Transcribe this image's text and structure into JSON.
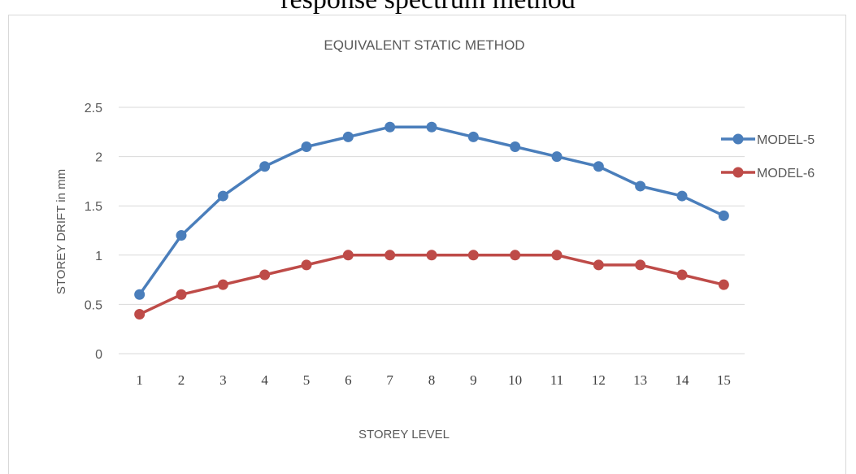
{
  "caption": "response spectrum method",
  "chart_data": {
    "type": "line",
    "title": "EQUIVALENT STATIC METHOD",
    "xlabel": "STOREY LEVEL",
    "ylabel": "STOREY DRIFT in mm",
    "x": [
      1,
      2,
      3,
      4,
      5,
      6,
      7,
      8,
      9,
      10,
      11,
      12,
      13,
      14,
      15
    ],
    "yticks": [
      "0",
      "0.5",
      "1",
      "1.5",
      "2",
      "2.5"
    ],
    "ylim": [
      0,
      2.5
    ],
    "grid": "horizontal",
    "legend": "right",
    "series": [
      {
        "name": "MODEL-5",
        "color": "#4a7ebb",
        "values": [
          0.6,
          1.2,
          1.6,
          1.9,
          2.1,
          2.2,
          2.3,
          2.3,
          2.2,
          2.1,
          2.0,
          1.9,
          1.7,
          1.6,
          1.4
        ]
      },
      {
        "name": "MODEL-6",
        "color": "#be4b48",
        "values": [
          0.4,
          0.6,
          0.7,
          0.8,
          0.9,
          1.0,
          1.0,
          1.0,
          1.0,
          1.0,
          1.0,
          0.9,
          0.9,
          0.8,
          0.7
        ]
      }
    ]
  }
}
